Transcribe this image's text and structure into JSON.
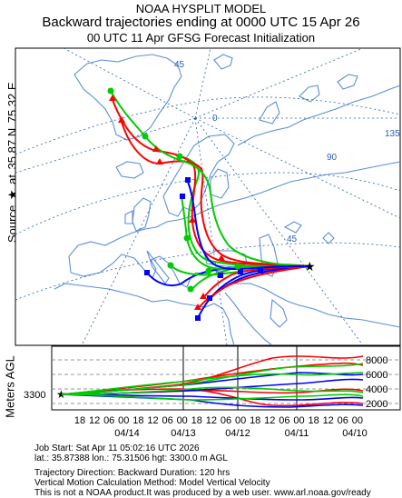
{
  "header": {
    "line1": "NOAA HYSPLIT MODEL",
    "line2": "Backward trajectories ending at 0000 UTC 15 Apr 26",
    "line3": "00 UTC 11 Apr    GFSG  Forecast Initialization"
  },
  "side_label": {
    "prefix": "Source",
    "star": "★",
    "at": "at",
    "lat": "35.87 N",
    "lon": "75.32 E"
  },
  "vertical_label": "Meters AGL",
  "map": {
    "grid_labels": [
      "45",
      "0",
      "135",
      "90",
      "45"
    ],
    "colors": {
      "land": "#ffffff",
      "coast": "#5b8fd6",
      "grid": "#2a5db0",
      "frame": "#000000"
    }
  },
  "profile": {
    "source_height": "3300",
    "y_ticks": [
      "8000",
      "6000",
      "4000",
      "2000"
    ],
    "hour_ticks": [
      "18",
      "12",
      "06",
      "00",
      "18",
      "12",
      "06",
      "00",
      "18",
      "12",
      "06",
      "00",
      "18",
      "12",
      "06",
      "00",
      "18",
      "12",
      "06",
      "00"
    ],
    "date_ticks": [
      "04/14",
      "04/13",
      "04/12",
      "04/11",
      "04/10"
    ]
  },
  "series_colors": [
    "#ff0000",
    "#0000ff",
    "#00cc00"
  ],
  "footer": {
    "job": "Job Start: Sat Apr 11 05:02:16 UTC 2026",
    "coords": "lat.: 35.87388  lon.: 75.31506   hgt: 3300.0 m AGL",
    "direction": "Trajectory Direction: Backward       Duration: 120 hrs",
    "vertical": "Vertical Motion Calculation Method: Model Vertical Velocity",
    "disclaimer": "This is not a NOAA product.It was produced by a web user. www.arl.noaa.gov/ready"
  }
}
